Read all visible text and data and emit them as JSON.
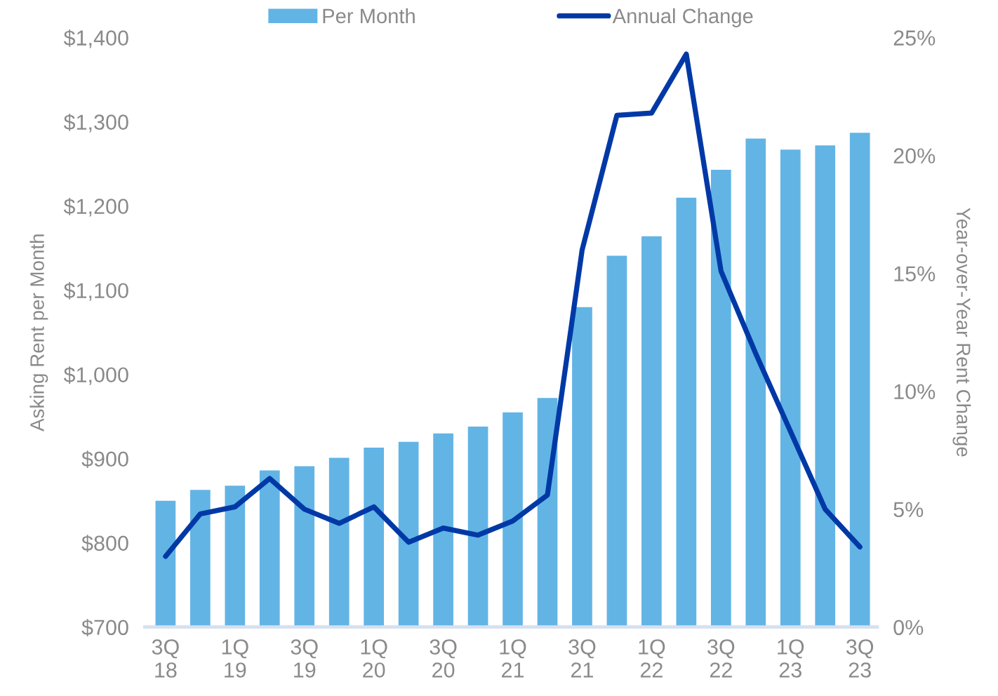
{
  "chart_data": {
    "type": "bar",
    "categories": [
      "3Q\n18",
      null,
      "1Q\n19",
      null,
      "3Q\n19",
      null,
      "1Q\n20",
      null,
      "3Q\n20",
      null,
      "1Q\n21",
      null,
      "3Q\n21",
      null,
      "1Q\n22",
      null,
      "3Q\n22",
      null,
      "1Q\n23",
      null,
      "3Q\n23"
    ],
    "series": [
      {
        "name": "Per Month",
        "color": "#62b4e5",
        "values": [
          850,
          863,
          868,
          886,
          891,
          901,
          913,
          920,
          930,
          938,
          955,
          972,
          1080,
          1141,
          1164,
          1210,
          1243,
          1280,
          1267,
          1272,
          1287
        ]
      },
      {
        "name": "Annual Change",
        "type": "line",
        "axis": "y2",
        "color": "#0039a6",
        "values": [
          3.0,
          4.8,
          5.1,
          6.3,
          5.0,
          4.4,
          5.1,
          3.6,
          4.2,
          3.9,
          4.5,
          5.6,
          16.0,
          21.7,
          21.8,
          24.3,
          15.1,
          11.6,
          8.3,
          5.0,
          3.4
        ]
      }
    ],
    "ylabel": "Asking Rent per Month",
    "y2label": "Year-over-Year Rent Change",
    "ylim": [
      700,
      1400
    ],
    "yticks": [
      {
        "value": 700,
        "label": "$700"
      },
      {
        "value": 800,
        "label": "$800"
      },
      {
        "value": 900,
        "label": "$900"
      },
      {
        "value": 1000,
        "label": "$1,000"
      },
      {
        "value": 1100,
        "label": "$1,100"
      },
      {
        "value": 1200,
        "label": "$1,200"
      },
      {
        "value": 1300,
        "label": "$1,300"
      },
      {
        "value": 1400,
        "label": "$1,400"
      }
    ],
    "y2lim": [
      0,
      25
    ],
    "y2ticks": [
      {
        "value": 0,
        "label": "0%"
      },
      {
        "value": 5,
        "label": "5%"
      },
      {
        "value": 10,
        "label": "10%"
      },
      {
        "value": 15,
        "label": "15%"
      },
      {
        "value": 20,
        "label": "20%"
      },
      {
        "value": 25,
        "label": "25%"
      }
    ],
    "legend": "top",
    "grid": false,
    "marker": "none",
    "line_style": "solid"
  }
}
